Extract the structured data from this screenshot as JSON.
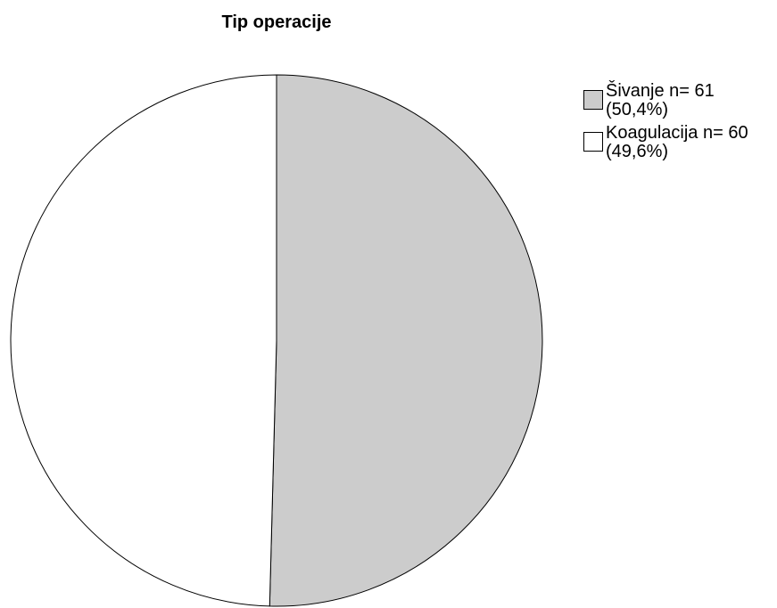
{
  "chart_data": {
    "type": "pie",
    "title": "Tip operacije",
    "slices": [
      {
        "label": "Šivanje n= 61",
        "percent_label": "(50,4%)",
        "value": 61,
        "color": "#cccccc"
      },
      {
        "label": "Koagulacija n= 60",
        "percent_label": "(49,6%)",
        "value": 60,
        "color": "#ffffff"
      }
    ],
    "start_angle_deg": 0,
    "direction": "clockwise",
    "legend_position": "top-right",
    "stroke_color": "#000000"
  }
}
